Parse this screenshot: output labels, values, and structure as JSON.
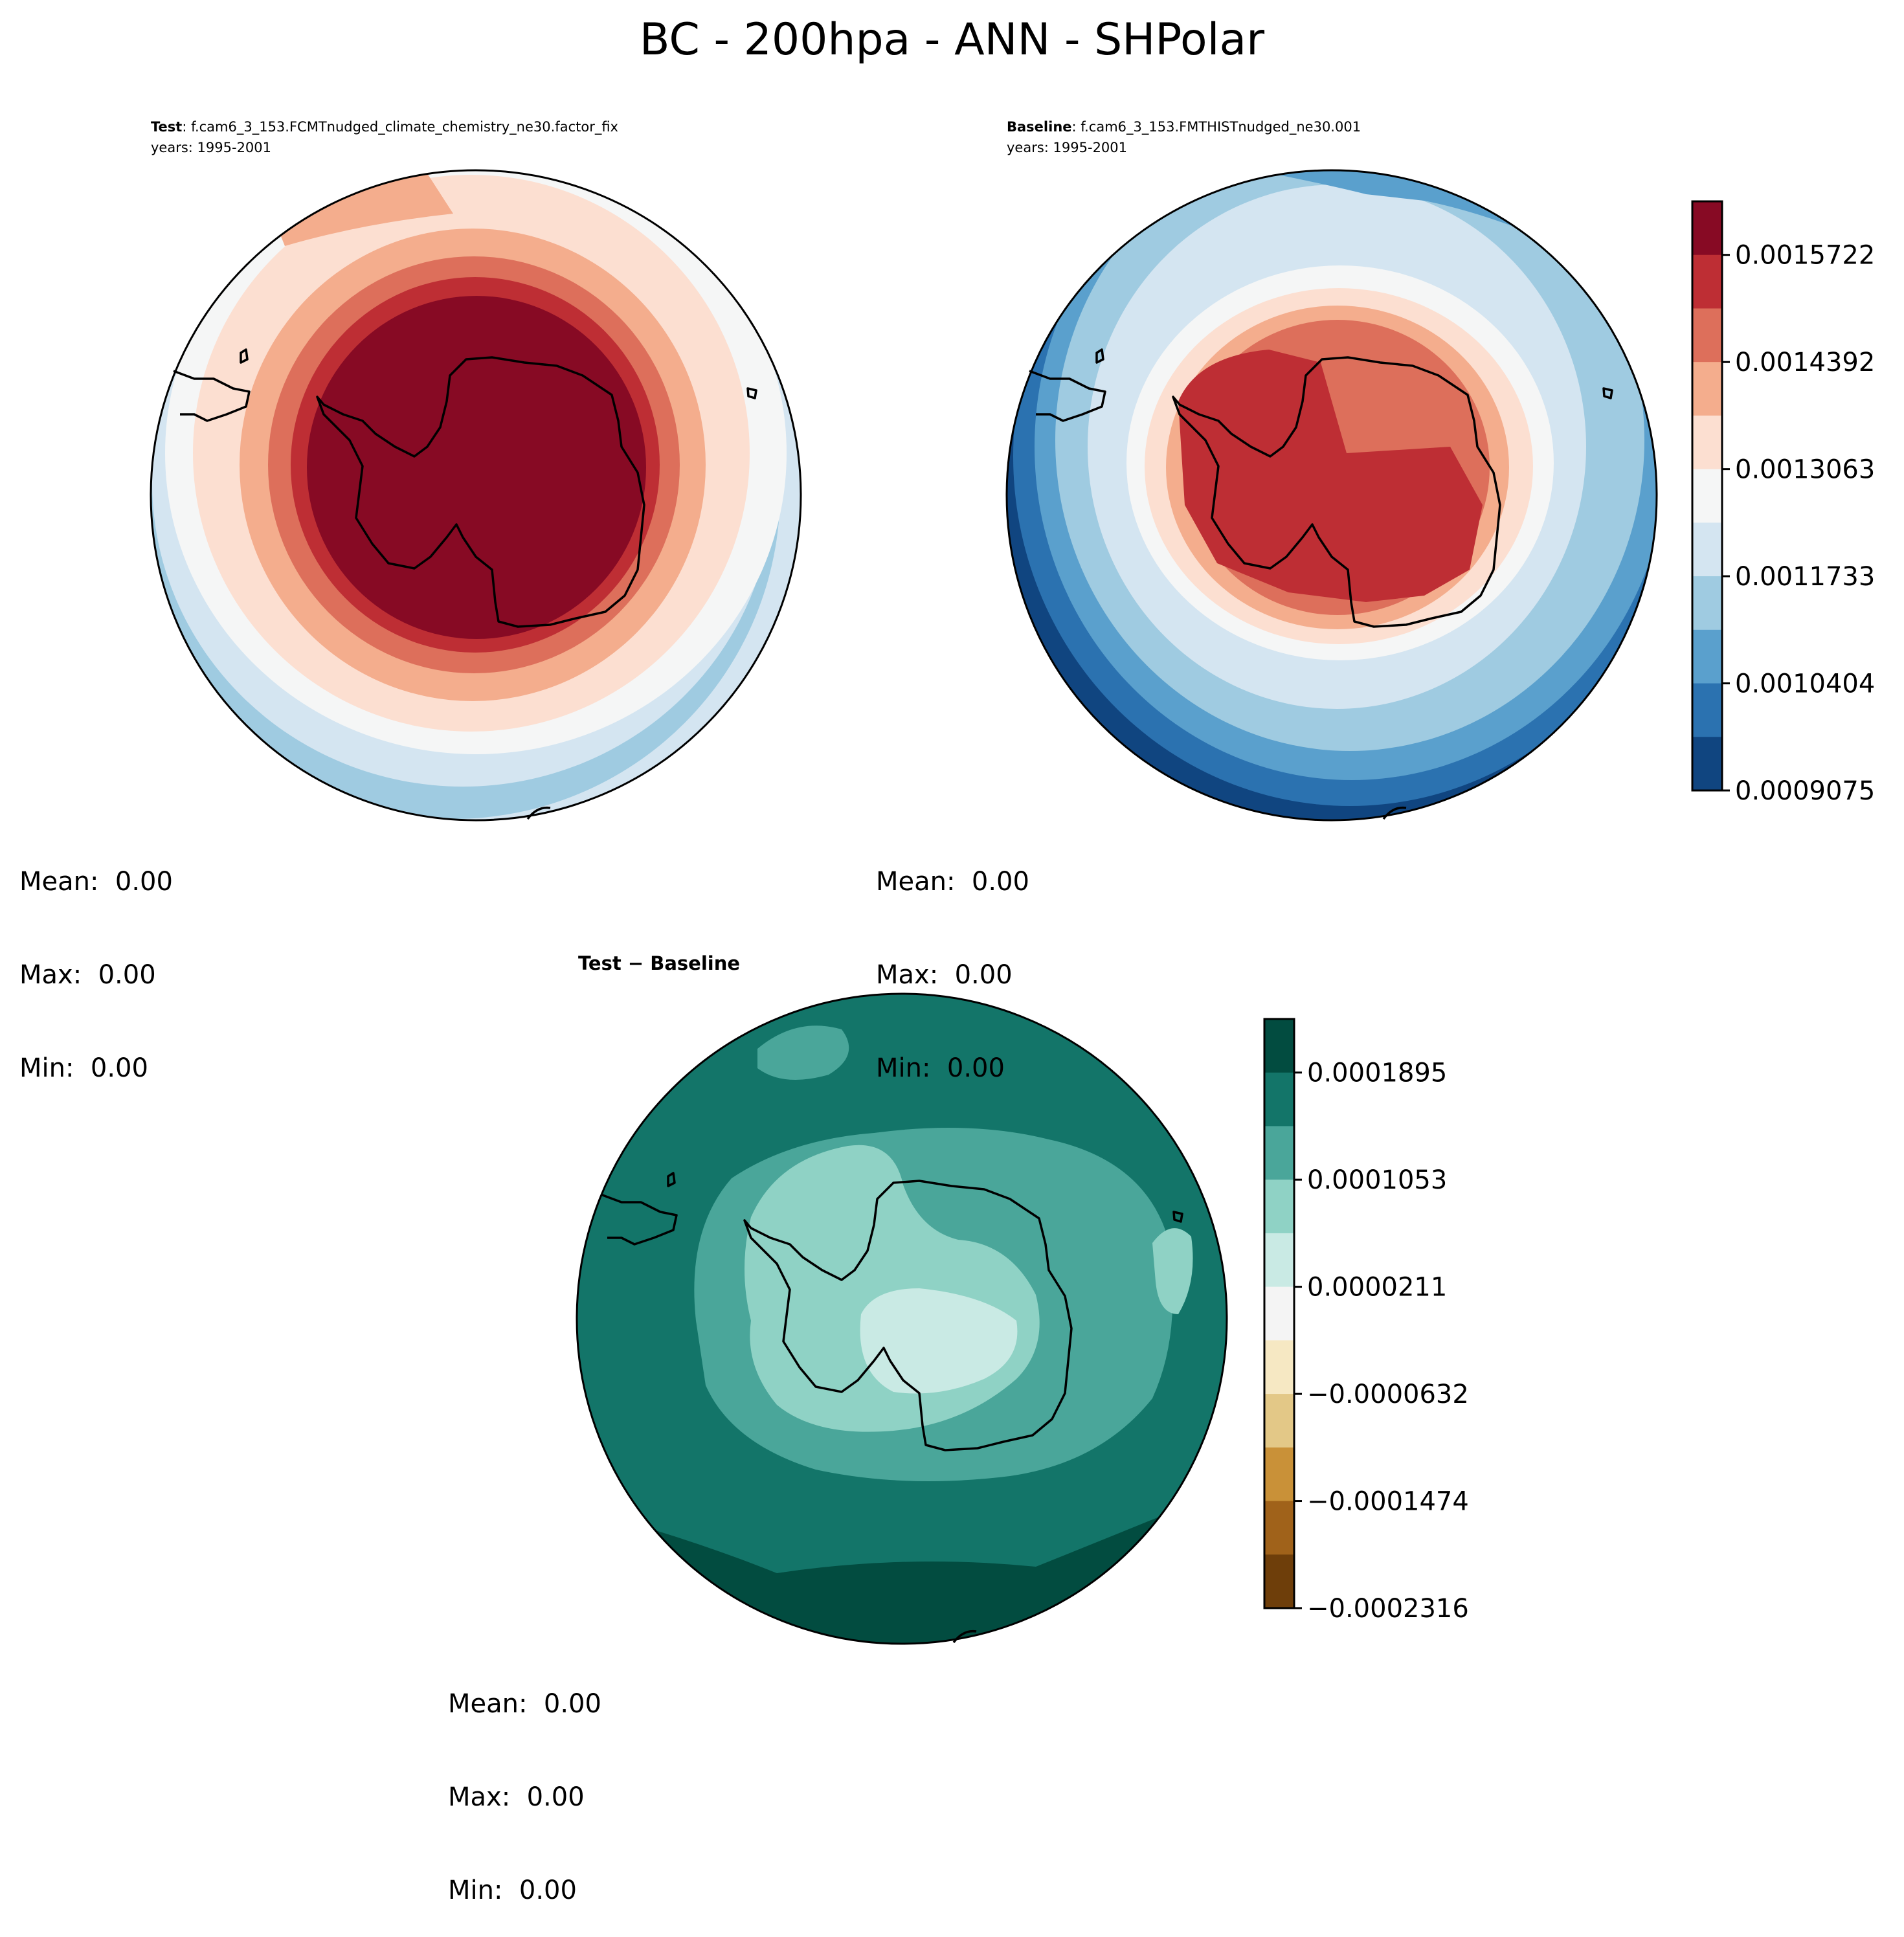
{
  "figure": {
    "title": "BC - 200hpa - ANN - SHPolar"
  },
  "panels": {
    "test": {
      "label_bold": "Test",
      "label_rest": ": f.cam6_3_153.FCMTnudged_climate_chemistry_ne30.factor_fix",
      "years": "years: 1995-2001",
      "mean": "Mean:  0.00",
      "max": "Max:  0.00",
      "min": "Min:  0.00"
    },
    "baseline": {
      "label_bold": "Baseline",
      "label_rest": ": f.cam6_3_153.FMTHISTnudged_ne30.001",
      "years": "years: 1995-2001",
      "mean": "Mean:  0.00",
      "max": "Max:  0.00",
      "min": "Min:  0.00"
    },
    "diff": {
      "title": "Test − Baseline",
      "mean": "Mean:  0.00",
      "max": "Max:  0.00",
      "min": "Min:  0.00"
    }
  },
  "chart_data": [
    {
      "type": "heatmap",
      "panel": "test",
      "projection": "south-polar-stereographic",
      "colormap": "RdBu_r",
      "colorbar": "shared with baseline panel",
      "levels": [
        0.0009075,
        0.000974,
        0.0010404,
        0.0011069,
        0.0011733,
        0.0012398,
        0.0013063,
        0.0013727,
        0.0014392,
        0.0015057,
        0.0015722
      ],
      "field_summary": "concentric rings: highest level (dark red, >0.0015722) over the Antarctic continent, decreasing outward to light blue (~0.00110-0.00117) at the outer edge"
    },
    {
      "type": "heatmap",
      "panel": "baseline",
      "projection": "south-polar-stereographic",
      "colormap": "RdBu_r",
      "colorbar": {
        "tick_labels": [
          "0.0015722",
          "0.0014392",
          "0.0013063",
          "0.0011733",
          "0.0010404",
          "0.0009075"
        ],
        "colors": [
          "#870a24",
          "#be2e34",
          "#dd6f5b",
          "#f4ad8d",
          "#fcdfd1",
          "#f5f6f6",
          "#d4e5f1",
          "#9fcbe1",
          "#5aa0cd",
          "#2b72b0",
          "#104580"
        ]
      },
      "levels": [
        0.0009075,
        0.000974,
        0.0010404,
        0.0011069,
        0.0011733,
        0.0012398,
        0.0013063,
        0.0013727,
        0.0014392,
        0.0015057,
        0.0015722
      ],
      "field_summary": "red (~0.00150-0.00157) over the Antarctic continent, decreasing outward through white (~0.0013) to dark blue (~0.00091) at the outer edge"
    },
    {
      "type": "heatmap",
      "panel": "diff",
      "projection": "south-polar-stereographic",
      "colormap": "BrBG",
      "colorbar": {
        "tick_labels": [
          "0.0001895",
          "0.0001053",
          "0.0000211",
          "−0.0000632",
          "−0.0001474",
          "−0.0002316"
        ],
        "colors": [
          "#024c40",
          "#137569",
          "#4aa69a",
          "#8fd2c5",
          "#c9eae4",
          "#f4f4f4",
          "#f6e8c3",
          "#e3c887",
          "#c99138",
          "#a0621a",
          "#6e3e0a"
        ]
      },
      "levels": [
        -0.0002316,
        -0.0001895,
        -0.0001474,
        -0.0001053,
        -6.32e-05,
        -2.11e-05,
        2.11e-05,
        6.32e-05,
        0.0001053,
        0.0001474,
        0.0001895,
        0.0002316
      ],
      "field_summary": "all positive: lowest (~0.00002-0.00006) over the Antarctic interior, increasing outward to ~0.00015-0.00019 at lower latitudes, largest (>0.0001895) in a band near the outer edge"
    }
  ]
}
